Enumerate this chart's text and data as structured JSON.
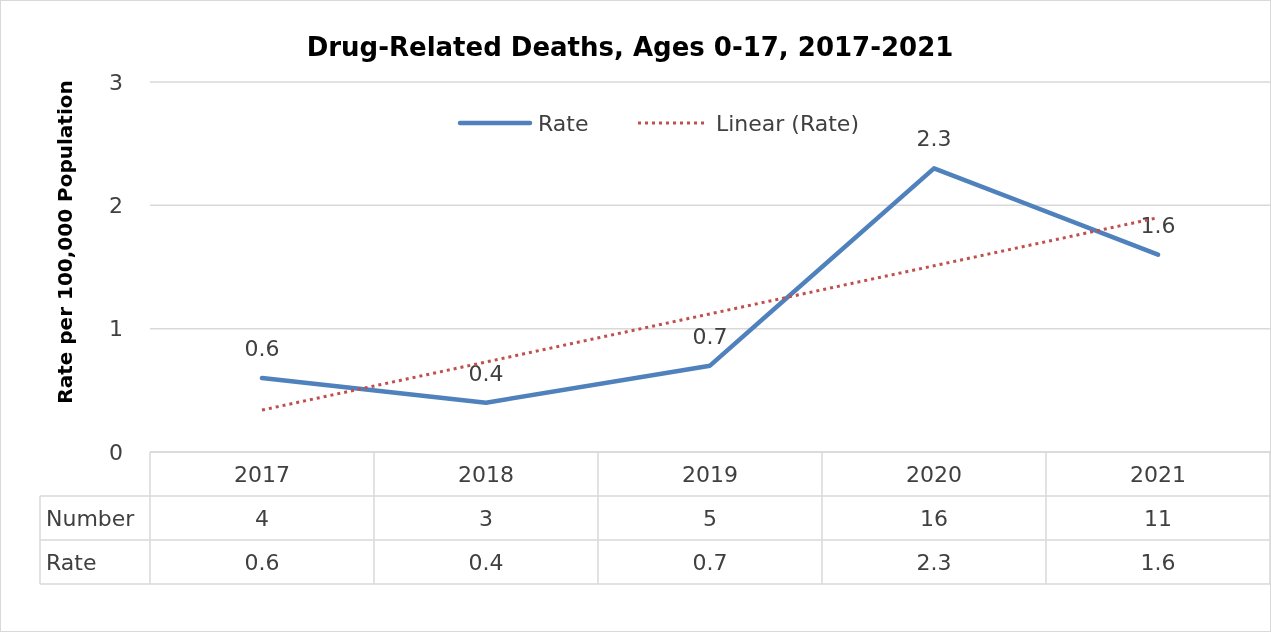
{
  "chart_data": {
    "type": "line",
    "title": "Drug-Related Deaths, Ages 0-17, 2017-2021",
    "ylabel": "Rate per 100,000 Population",
    "categories": [
      "2017",
      "2018",
      "2019",
      "2020",
      "2021"
    ],
    "series": [
      {
        "name": "Rate",
        "color": "#4f81bd",
        "values": [
          0.6,
          0.4,
          0.7,
          2.3,
          1.6
        ],
        "value_labels": [
          "0.6",
          "0.4",
          "0.7",
          "2.3",
          "1.6"
        ],
        "line_style": "solid"
      },
      {
        "name": "Linear (Rate)",
        "color": "#c0504d",
        "values": [
          0.34,
          0.73,
          1.12,
          1.51,
          1.9
        ],
        "line_style": "dotted"
      }
    ],
    "annotations": [
      "Number",
      "4",
      "3",
      "5",
      "16",
      "11"
    ],
    "ylim": [
      0,
      3
    ],
    "yticks": [
      0,
      1,
      2,
      3
    ],
    "grid": "y",
    "legend": "top",
    "marker": "none"
  }
}
